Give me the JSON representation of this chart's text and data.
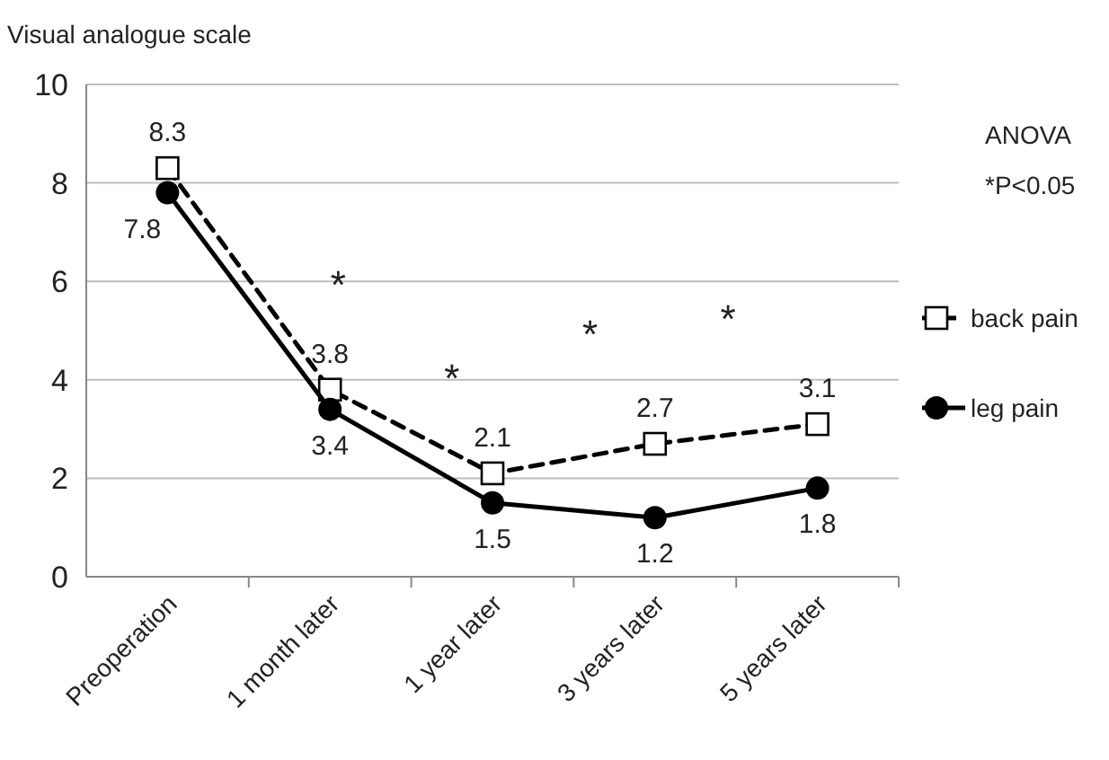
{
  "chart_data": {
    "type": "line",
    "ylabel": "Visual analogue scale",
    "categories": [
      "Preoperation",
      "1 month later",
      "1 year later",
      "3 years later",
      "5 years later"
    ],
    "ylim": [
      0,
      10
    ],
    "yticks": [
      0,
      2,
      4,
      6,
      8,
      10
    ],
    "grid": "y",
    "legend": "right",
    "data_labels": true,
    "series": [
      {
        "name": "back pain",
        "color": "#000000",
        "values": [
          8.3,
          3.8,
          2.1,
          2.7,
          3.1
        ],
        "marker": "square",
        "line_style": "dashed"
      },
      {
        "name": "leg pain",
        "color": "#000000",
        "values": [
          7.8,
          3.4,
          1.5,
          1.2,
          1.8
        ],
        "marker": "circle",
        "line_style": "solid"
      }
    ],
    "annotations": [
      "ANOVA",
      "*P<0.05",
      "*",
      "*",
      "*",
      "*"
    ]
  }
}
